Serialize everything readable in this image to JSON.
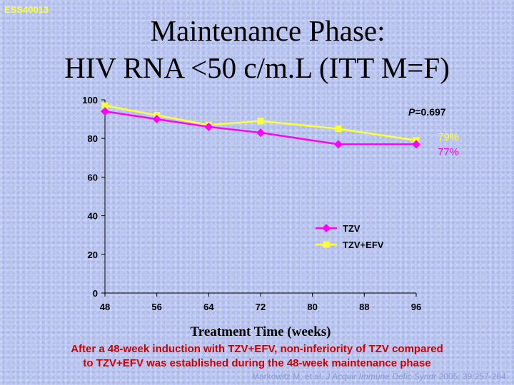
{
  "study_id": "ESS40013",
  "title_line1": "Maintenance Phase:",
  "title_line2": "HIV RNA <50 c/m.L (ITT M=F)",
  "colors": {
    "tzv": "#ff00ff",
    "tzv_efv": "#ffff33"
  },
  "chart_data": {
    "type": "line",
    "categories": [
      "48",
      "56",
      "64",
      "72",
      "80",
      "88",
      "96"
    ],
    "series": [
      {
        "name": "TZV",
        "x": [
          48,
          56,
          64,
          72,
          84,
          96
        ],
        "values": [
          94,
          90,
          86,
          83,
          77,
          77
        ],
        "color": "#ff00ff",
        "marker": "diamond"
      },
      {
        "name": "TZV+EFV",
        "x": [
          48,
          56,
          64,
          72,
          84,
          96
        ],
        "values": [
          97,
          92,
          87,
          89,
          85,
          79
        ],
        "color": "#ffff33",
        "marker": "square"
      }
    ],
    "xlabel": "Treatment Time (weeks)",
    "ylabel": "",
    "ylim": [
      0,
      100
    ],
    "xlim": [
      48,
      96
    ],
    "yticks": [
      "0",
      "20",
      "40",
      "60",
      "80",
      "100"
    ],
    "annotations": {
      "p_value_prefix": "P",
      "p_value_rest": "=0.697",
      "end_label_tzv_efv": "79%",
      "end_label_tzv": "77%"
    },
    "legend": [
      "TZV",
      "TZV+EFV"
    ]
  },
  "caption_line1": "After a 48-week induction with TZV+EFV, non-inferiority of TZV compared",
  "caption_line2": "to TZV+EFV was established during the 48-week maintenance phase",
  "citation_authors": "Markowitz M, et al. ",
  "citation_journal": "J Acquir Immune Defic Syndr",
  "citation_rest": " 2005; 39:257-264."
}
